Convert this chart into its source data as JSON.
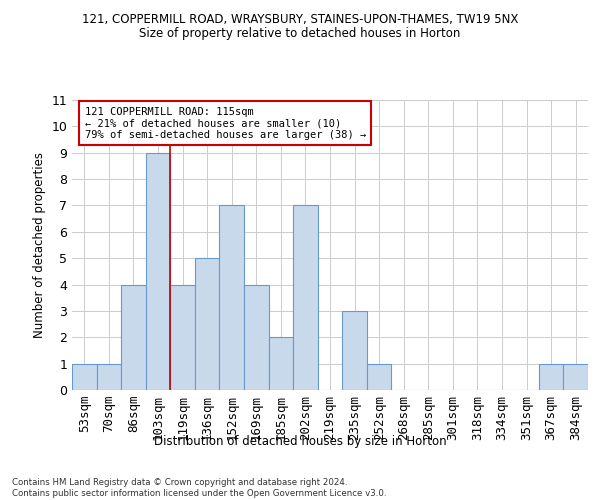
{
  "title_line1": "121, COPPERMILL ROAD, WRAYSBURY, STAINES-UPON-THAMES, TW19 5NX",
  "title_line2": "Size of property relative to detached houses in Horton",
  "xlabel": "Distribution of detached houses by size in Horton",
  "ylabel": "Number of detached properties",
  "footnote": "Contains HM Land Registry data © Crown copyright and database right 2024.\nContains public sector information licensed under the Open Government Licence v3.0.",
  "bar_labels": [
    "53sqm",
    "70sqm",
    "86sqm",
    "103sqm",
    "119sqm",
    "136sqm",
    "152sqm",
    "169sqm",
    "185sqm",
    "202sqm",
    "219sqm",
    "235sqm",
    "252sqm",
    "268sqm",
    "285sqm",
    "301sqm",
    "318sqm",
    "334sqm",
    "351sqm",
    "367sqm",
    "384sqm"
  ],
  "bar_values": [
    1,
    1,
    4,
    9,
    4,
    5,
    7,
    4,
    2,
    7,
    0,
    3,
    1,
    0,
    0,
    0,
    0,
    0,
    0,
    1,
    1
  ],
  "bar_color": "#c9d9ec",
  "bar_edge_color": "#6699cc",
  "reference_line_x": 3.5,
  "ylim": [
    0,
    11
  ],
  "yticks": [
    0,
    1,
    2,
    3,
    4,
    5,
    6,
    7,
    8,
    9,
    10,
    11
  ],
  "annotation_text": "121 COPPERMILL ROAD: 115sqm\n← 21% of detached houses are smaller (10)\n79% of semi-detached houses are larger (38) →",
  "annotation_box_color": "#ffffff",
  "annotation_box_edge": "#cc0000",
  "grid_color": "#cccccc",
  "background_color": "#ffffff"
}
